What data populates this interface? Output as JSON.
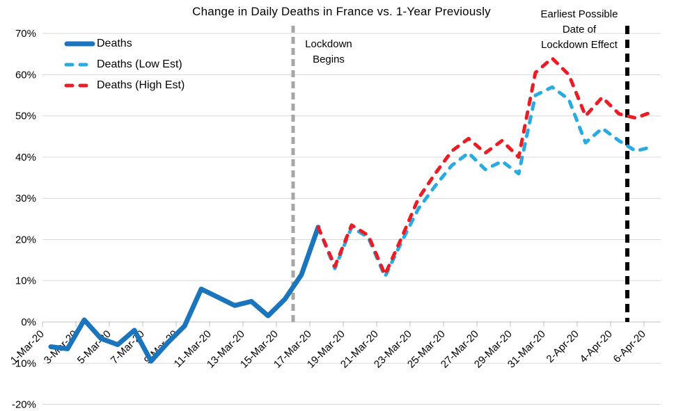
{
  "title": "Change in Daily Deaths in France vs. 1-Year Previously",
  "chart_data": {
    "type": "line",
    "title": "Change in Daily Deaths in France vs. 1-Year Previously",
    "x": [
      "1-Mar-20",
      "2-Mar-20",
      "3-Mar-20",
      "4-Mar-20",
      "5-Mar-20",
      "6-Mar-20",
      "7-Mar-20",
      "8-Mar-20",
      "9-Mar-20",
      "10-Mar-20",
      "11-Mar-20",
      "12-Mar-20",
      "13-Mar-20",
      "14-Mar-20",
      "15-Mar-20",
      "16-Mar-20",
      "17-Mar-20",
      "18-Mar-20",
      "19-Mar-20",
      "20-Mar-20",
      "21-Mar-20",
      "22-Mar-20",
      "23-Mar-20",
      "24-Mar-20",
      "25-Mar-20",
      "26-Mar-20",
      "27-Mar-20",
      "28-Mar-20",
      "29-Mar-20",
      "30-Mar-20",
      "31-Mar-20",
      "1-Apr-20",
      "2-Apr-20",
      "3-Apr-20",
      "4-Apr-20",
      "5-Apr-20",
      "6-Apr-20"
    ],
    "x_tick_every": 2,
    "ylim": [
      -20,
      70
    ],
    "grid": true,
    "legend_position": "top-left",
    "y_ticks": [
      {
        "value": 70,
        "label": "70%"
      },
      {
        "value": 60,
        "label": "60%"
      },
      {
        "value": 50,
        "label": "50%"
      },
      {
        "value": 40,
        "label": "40%"
      },
      {
        "value": 30,
        "label": "30%"
      },
      {
        "value": 20,
        "label": "20%"
      },
      {
        "value": 10,
        "label": "10%"
      },
      {
        "value": 0,
        "label": "0%"
      },
      {
        "value": -10,
        "label": "-10%"
      },
      {
        "value": -20,
        "label": "-20%"
      }
    ],
    "series": [
      {
        "name": "Deaths",
        "color": "#1B75BC",
        "style": "solid",
        "width": 7,
        "values": [
          -6,
          -6.5,
          0.5,
          -4,
          -5.5,
          -2,
          -9.5,
          -5,
          -1,
          8,
          6,
          4,
          5,
          1.5,
          5.5,
          11.5,
          23,
          null,
          null,
          null,
          null,
          null,
          null,
          null,
          null,
          null,
          null,
          null,
          null,
          null,
          null,
          null,
          null,
          null,
          null,
          null,
          null
        ]
      },
      {
        "name": "Deaths (Low Est)",
        "color": "#29ABE2",
        "style": "dashed",
        "width": 5,
        "values": [
          null,
          null,
          null,
          null,
          null,
          null,
          null,
          null,
          null,
          null,
          null,
          null,
          null,
          null,
          null,
          null,
          23,
          13,
          23,
          20.5,
          11,
          19.5,
          27.5,
          33,
          38,
          41,
          37,
          39,
          36,
          55,
          57,
          54,
          43.5,
          47,
          44,
          41.5,
          42.5
        ]
      },
      {
        "name": "Deaths (High Est)",
        "color": "#EC1C24",
        "style": "dashed",
        "width": 5,
        "values": [
          null,
          null,
          null,
          null,
          null,
          null,
          null,
          null,
          null,
          null,
          null,
          null,
          null,
          null,
          null,
          null,
          23,
          13.5,
          23.5,
          21,
          11.5,
          20.5,
          30,
          36,
          41.5,
          44.5,
          41,
          44,
          40,
          60.5,
          64,
          60,
          50,
          54.5,
          50.5,
          49.5,
          51
        ]
      }
    ],
    "annotations": [
      {
        "text": "Lockdown\nBegins",
        "line_at": "16-Mar-20",
        "line_color": "#A6A6A6",
        "line_style": "dashed"
      },
      {
        "text": "Earliest Possible\nDate of\nLockdown Effect",
        "line_at": "5-Apr-20",
        "line_color": "#000000",
        "line_style": "dashed"
      }
    ],
    "colors": {
      "gridline": "#D9D9D9",
      "axis": "#C0C0C0",
      "text": "#000000"
    }
  }
}
